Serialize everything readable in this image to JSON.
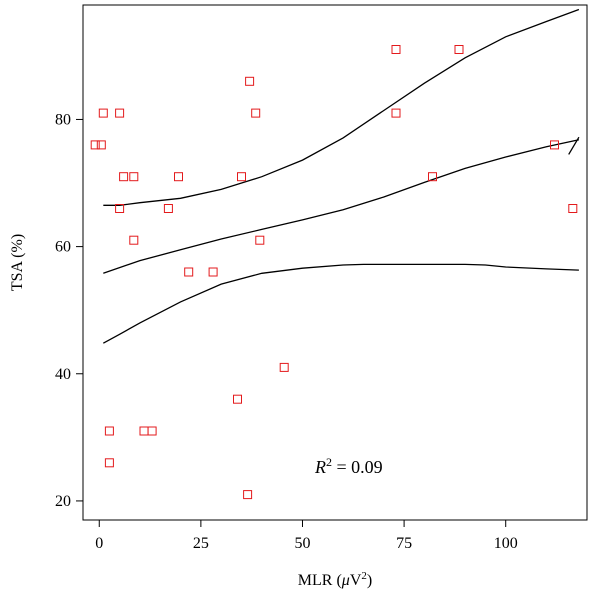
{
  "chart_data": {
    "type": "scatter",
    "xlabel_main": "MLR (",
    "xlabel_mu": "μ",
    "xlabel_unit": "V",
    "xlabel_sup": "2",
    "xlabel_close": ")",
    "ylabel": "TSA (%)",
    "xlim": [
      -4,
      120
    ],
    "ylim": [
      17,
      98
    ],
    "x_ticks": [
      0,
      25,
      50,
      75,
      100
    ],
    "y_ticks": [
      20,
      40,
      60,
      80
    ],
    "grid": false,
    "annotation": {
      "italic": "R",
      "sup": "2",
      "rest": " = 0.09"
    },
    "points": [
      {
        "x": -1,
        "y": 76
      },
      {
        "x": 0.5,
        "y": 76
      },
      {
        "x": 1,
        "y": 81
      },
      {
        "x": 5,
        "y": 81
      },
      {
        "x": 5,
        "y": 66
      },
      {
        "x": 6,
        "y": 71
      },
      {
        "x": 8.5,
        "y": 71
      },
      {
        "x": 8.5,
        "y": 61
      },
      {
        "x": 2.5,
        "y": 31
      },
      {
        "x": 2.5,
        "y": 26
      },
      {
        "x": 11,
        "y": 31
      },
      {
        "x": 13,
        "y": 31
      },
      {
        "x": 17,
        "y": 66
      },
      {
        "x": 19.5,
        "y": 71
      },
      {
        "x": 22,
        "y": 56
      },
      {
        "x": 28,
        "y": 56
      },
      {
        "x": 35,
        "y": 71
      },
      {
        "x": 37,
        "y": 86
      },
      {
        "x": 38.5,
        "y": 81
      },
      {
        "x": 39.5,
        "y": 61
      },
      {
        "x": 34,
        "y": 36
      },
      {
        "x": 36.5,
        "y": 21
      },
      {
        "x": 45.5,
        "y": 41
      },
      {
        "x": 73,
        "y": 91
      },
      {
        "x": 73,
        "y": 81
      },
      {
        "x": 82,
        "y": 71
      },
      {
        "x": 88.5,
        "y": 91
      },
      {
        "x": 112,
        "y": 76
      },
      {
        "x": 116.5,
        "y": 66
      }
    ],
    "series": [
      {
        "values": [
          [
            1,
            55.8
          ],
          [
            10,
            57.8
          ],
          [
            20,
            59.5
          ],
          [
            30,
            61.2
          ],
          [
            40,
            62.7
          ],
          [
            50,
            64.2
          ],
          [
            60,
            65.8
          ],
          [
            70,
            67.8
          ],
          [
            80,
            70.1
          ],
          [
            90,
            72.3
          ],
          [
            100,
            74.1
          ],
          [
            110,
            75.7
          ],
          [
            118,
            76.8
          ]
        ]
      },
      {
        "values": [
          [
            1,
            66.5
          ],
          [
            5,
            66.5
          ],
          [
            10,
            66.9
          ],
          [
            20,
            67.6
          ],
          [
            30,
            69.0
          ],
          [
            40,
            71.0
          ],
          [
            50,
            73.6
          ],
          [
            60,
            77.1
          ],
          [
            70,
            81.4
          ],
          [
            80,
            85.7
          ],
          [
            90,
            89.7
          ],
          [
            100,
            93.0
          ],
          [
            110,
            95.4
          ],
          [
            118,
            97.3
          ]
        ]
      },
      {
        "values": [
          [
            1,
            44.8
          ],
          [
            5,
            46.2
          ],
          [
            10,
            48.0
          ],
          [
            20,
            51.3
          ],
          [
            30,
            54.1
          ],
          [
            40,
            55.8
          ],
          [
            50,
            56.6
          ],
          [
            60,
            57.1
          ],
          [
            65,
            57.2
          ],
          [
            70,
            57.2
          ],
          [
            80,
            57.2
          ],
          [
            90,
            57.2
          ],
          [
            95,
            57.1
          ],
          [
            100,
            56.8
          ],
          [
            110,
            56.5
          ],
          [
            118,
            56.3
          ]
        ]
      },
      {
        "values": [
          [
            115.5,
            74.5
          ],
          [
            118,
            77.2
          ]
        ]
      }
    ],
    "colors": {
      "marker": "#e31a1c",
      "line": "#000000",
      "axis": "#000000"
    }
  }
}
